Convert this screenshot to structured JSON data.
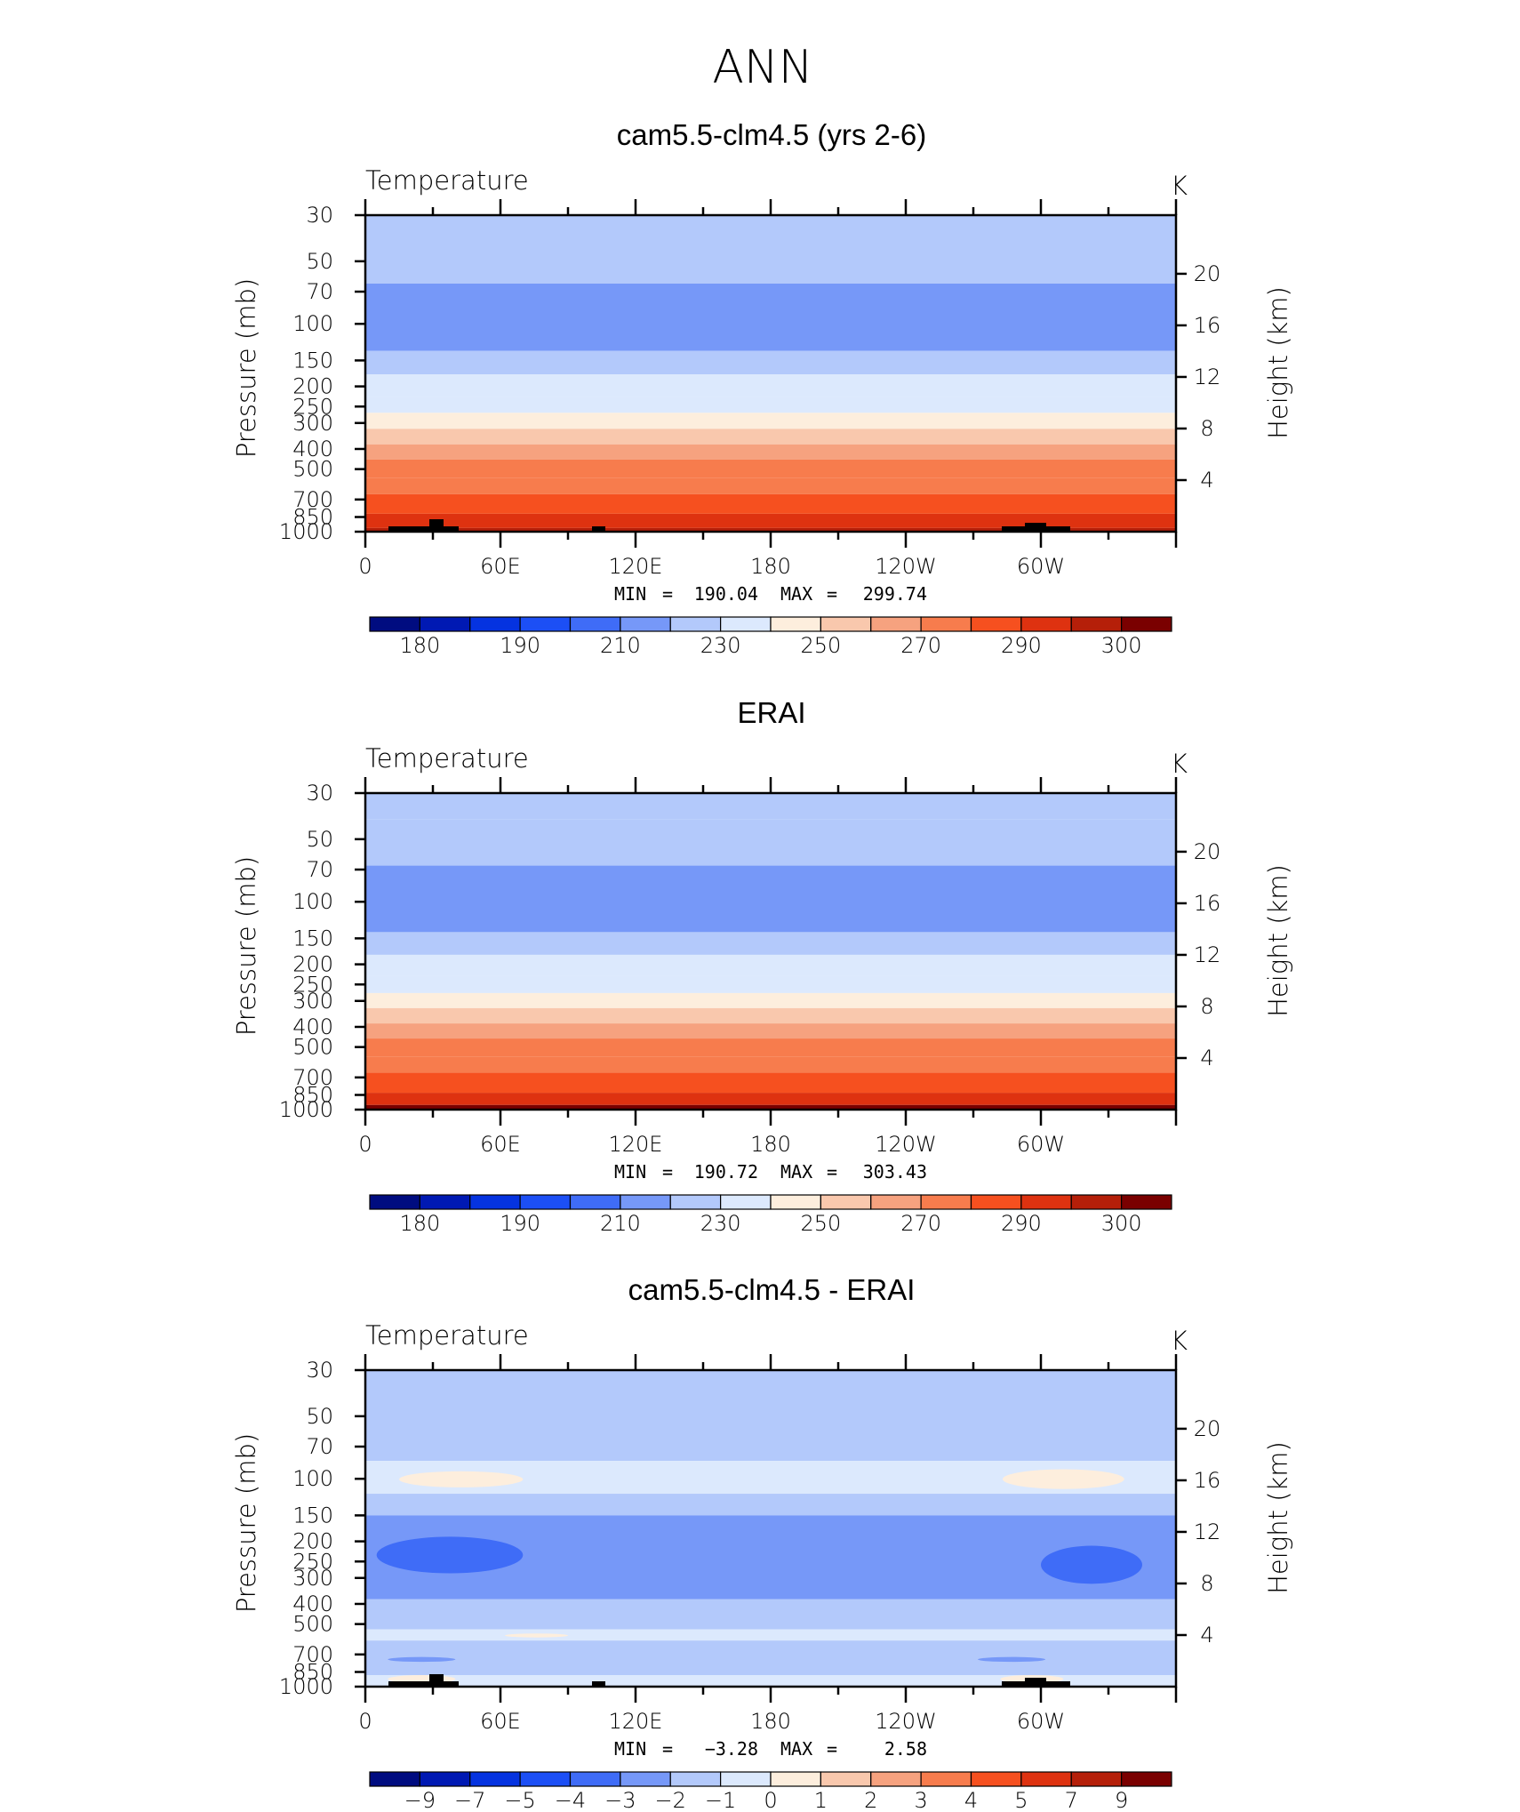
{
  "figure": {
    "title": "ANN"
  },
  "chart_data": [
    {
      "type": "heatmap",
      "title": "cam5.5-clm4.5 (yrs 2-6)",
      "subtitle": "Temperature",
      "units": "K",
      "ylabel": "Pressure (mb)",
      "y2label": "Height (km)",
      "x_ticks": [
        "0",
        "60E",
        "120E",
        "180",
        "120W",
        "60W"
      ],
      "y_ticks": [
        "30",
        "50",
        "70",
        "100",
        "150",
        "200",
        "250",
        "300",
        "400",
        "500",
        "700",
        "850",
        "1000"
      ],
      "y2_ticks": [
        "20",
        "16",
        "12",
        "8",
        "4"
      ],
      "ylim": [
        1000,
        30
      ],
      "y_scale": "log",
      "stats": {
        "min_label": "MIN",
        "min": "190.04",
        "max_label": "MAX",
        "max": "299.74"
      },
      "colorbar": {
        "labels": [
          "180",
          "190",
          "210",
          "230",
          "250",
          "270",
          "290",
          "300"
        ],
        "colors": [
          "#000c80",
          "#0019b3",
          "#0533e0",
          "#1c4ff5",
          "#3f6cf7",
          "#7698f8",
          "#b3c9fb",
          "#dce9fd",
          "#fdeedd",
          "#f9c8ad",
          "#f6a27f",
          "#f77c4d",
          "#f6501f",
          "#de3210",
          "#b51f09",
          "#7a0000"
        ]
      },
      "levels": [
        {
          "p_top": 30,
          "p_bot": 38,
          "value": 215
        },
        {
          "p_top": 38,
          "p_bot": 64,
          "value": 212
        },
        {
          "p_top": 64,
          "p_bot": 135,
          "value": 205
        },
        {
          "p_top": 135,
          "p_bot": 175,
          "value": 212
        },
        {
          "p_top": 175,
          "p_bot": 225,
          "value": 220
        },
        {
          "p_top": 225,
          "p_bot": 268,
          "value": 228
        },
        {
          "p_top": 268,
          "p_bot": 320,
          "value": 237
        },
        {
          "p_top": 320,
          "p_bot": 380,
          "value": 245
        },
        {
          "p_top": 380,
          "p_bot": 450,
          "value": 255
        },
        {
          "p_top": 450,
          "p_bot": 550,
          "value": 262
        },
        {
          "p_top": 550,
          "p_bot": 660,
          "value": 268
        },
        {
          "p_top": 660,
          "p_bot": 820,
          "value": 275
        },
        {
          "p_top": 820,
          "p_bot": 960,
          "value": 283
        },
        {
          "p_top": 960,
          "p_bot": 1000,
          "value": 292
        }
      ]
    },
    {
      "type": "heatmap",
      "title": "ERAI",
      "subtitle": "Temperature",
      "units": "K",
      "ylabel": "Pressure (mb)",
      "y2label": "Height (km)",
      "x_ticks": [
        "0",
        "60E",
        "120E",
        "180",
        "120W",
        "60W"
      ],
      "y_ticks": [
        "30",
        "50",
        "70",
        "100",
        "150",
        "200",
        "250",
        "300",
        "400",
        "500",
        "700",
        "850",
        "1000"
      ],
      "y2_ticks": [
        "20",
        "16",
        "12",
        "8",
        "4"
      ],
      "ylim": [
        1000,
        30
      ],
      "y_scale": "log",
      "stats": {
        "min_label": "MIN",
        "min": "190.72",
        "max_label": "MAX",
        "max": "303.43"
      },
      "colorbar": {
        "labels": [
          "180",
          "190",
          "210",
          "230",
          "250",
          "270",
          "290",
          "300"
        ],
        "colors": [
          "#000c80",
          "#0019b3",
          "#0533e0",
          "#1c4ff5",
          "#3f6cf7",
          "#7698f8",
          "#b3c9fb",
          "#dce9fd",
          "#fdeedd",
          "#f9c8ad",
          "#f6a27f",
          "#f77c4d",
          "#f6501f",
          "#de3210",
          "#b51f09",
          "#7a0000"
        ]
      },
      "levels": [
        {
          "p_top": 30,
          "p_bot": 40,
          "value": 215
        },
        {
          "p_top": 40,
          "p_bot": 67,
          "value": 212
        },
        {
          "p_top": 67,
          "p_bot": 140,
          "value": 205
        },
        {
          "p_top": 140,
          "p_bot": 180,
          "value": 212
        },
        {
          "p_top": 180,
          "p_bot": 228,
          "value": 220
        },
        {
          "p_top": 228,
          "p_bot": 275,
          "value": 228
        },
        {
          "p_top": 275,
          "p_bot": 325,
          "value": 237
        },
        {
          "p_top": 325,
          "p_bot": 385,
          "value": 245
        },
        {
          "p_top": 385,
          "p_bot": 455,
          "value": 255
        },
        {
          "p_top": 455,
          "p_bot": 555,
          "value": 262
        },
        {
          "p_top": 555,
          "p_bot": 665,
          "value": 268
        },
        {
          "p_top": 665,
          "p_bot": 830,
          "value": 275
        },
        {
          "p_top": 830,
          "p_bot": 950,
          "value": 285
        },
        {
          "p_top": 950,
          "p_bot": 1000,
          "value": 295
        }
      ]
    },
    {
      "type": "heatmap",
      "title": "cam5.5-clm4.5 - ERAI",
      "subtitle": "Temperature",
      "units": "K",
      "ylabel": "Pressure (mb)",
      "y2label": "Height (km)",
      "x_ticks": [
        "0",
        "60E",
        "120E",
        "180",
        "120W",
        "60W"
      ],
      "y_ticks": [
        "30",
        "50",
        "70",
        "100",
        "150",
        "200",
        "250",
        "300",
        "400",
        "500",
        "700",
        "850",
        "1000"
      ],
      "y2_ticks": [
        "20",
        "16",
        "12",
        "8",
        "4"
      ],
      "ylim": [
        1000,
        30
      ],
      "y_scale": "log",
      "stats": {
        "min_label": "MIN",
        "min": "−3.28",
        "max_label": "MAX",
        "max": "2.58"
      },
      "colorbar": {
        "labels": [
          "−9",
          "−7",
          "−5",
          "−4",
          "−3",
          "−2",
          "−1",
          "0",
          "1",
          "2",
          "3",
          "4",
          "5",
          "7",
          "9"
        ],
        "colors": [
          "#000c80",
          "#0019b3",
          "#0533e0",
          "#1c4ff5",
          "#3f6cf7",
          "#7698f8",
          "#b3c9fb",
          "#dce9fd",
          "#fdeedd",
          "#f9c8ad",
          "#f6a27f",
          "#f77c4d",
          "#f6501f",
          "#de3210",
          "#b51f09",
          "#7a0000"
        ]
      },
      "levels": [
        {
          "p_top": 30,
          "p_bot": 82,
          "value": -1.5
        },
        {
          "p_top": 82,
          "p_bot": 118,
          "value": -0.5
        },
        {
          "p_top": 118,
          "p_bot": 150,
          "value": -1.5
        },
        {
          "p_top": 150,
          "p_bot": 380,
          "value": -2.5
        },
        {
          "p_top": 380,
          "p_bot": 530,
          "value": -1.5
        },
        {
          "p_top": 530,
          "p_bot": 600,
          "value": -0.5
        },
        {
          "p_top": 600,
          "p_bot": 880,
          "value": -1.5
        },
        {
          "p_top": 880,
          "p_bot": 1000,
          "value": -0.5
        }
      ],
      "anomalies": [
        {
          "lon0": 5,
          "lon1": 70,
          "p_top": 190,
          "p_bot": 285,
          "value": -3.5
        },
        {
          "lon0": 300,
          "lon1": 345,
          "p_top": 210,
          "p_bot": 320,
          "value": -3.5
        },
        {
          "lon0": 15,
          "lon1": 70,
          "p_top": 92,
          "p_bot": 110,
          "value": 0.5
        },
        {
          "lon0": 283,
          "lon1": 337,
          "p_top": 90,
          "p_bot": 112,
          "value": 0.5
        },
        {
          "lon0": 10,
          "lon1": 40,
          "p_top": 880,
          "p_bot": 960,
          "value": 0.5
        },
        {
          "lon0": 282,
          "lon1": 310,
          "p_top": 880,
          "p_bot": 960,
          "value": 0.5
        },
        {
          "lon0": 10,
          "lon1": 40,
          "p_top": 720,
          "p_bot": 760,
          "value": -2.5
        },
        {
          "lon0": 272,
          "lon1": 302,
          "p_top": 720,
          "p_bot": 760,
          "value": -2.5
        },
        {
          "lon0": 62,
          "lon1": 90,
          "p_top": 555,
          "p_bot": 580,
          "value": 0.3
        }
      ]
    }
  ]
}
